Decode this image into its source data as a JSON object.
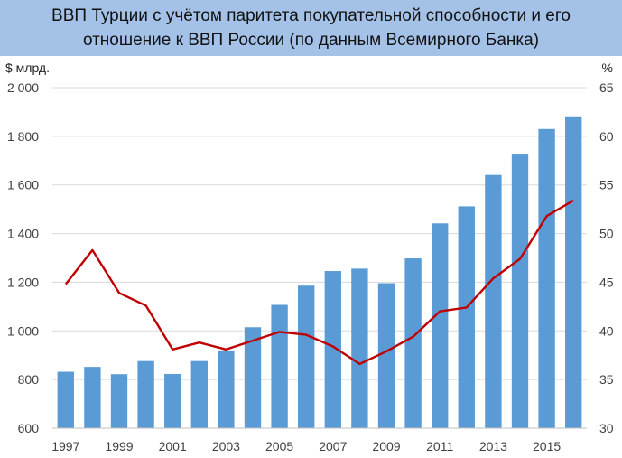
{
  "chart_data": {
    "type": "bar+line",
    "title_lines": [
      "ВВП Турции с учётом паритета покупательной способности и его",
      "отношение к ВВП России (по данным Всемирного Банка)"
    ],
    "y_left_unit": "$ млрд.",
    "y_right_unit": "%",
    "ylim_left": [
      600,
      2000
    ],
    "ylim_right": [
      30,
      65
    ],
    "y_left_ticks": [
      "600",
      "800",
      "1 000",
      "1 200",
      "1 400",
      "1 600",
      "1 800",
      "2 000"
    ],
    "y_right_ticks": [
      "30",
      "35",
      "40",
      "45",
      "50",
      "55",
      "60",
      "65"
    ],
    "x_tick_labels": [
      "1997",
      "1999",
      "2001",
      "2003",
      "2005",
      "2007",
      "2009",
      "2011",
      "2013",
      "2015"
    ],
    "categories": [
      "1997",
      "1998",
      "1999",
      "2000",
      "2001",
      "2002",
      "2003",
      "2004",
      "2005",
      "2006",
      "2007",
      "2008",
      "2009",
      "2010",
      "2011",
      "2012",
      "2013",
      "2014",
      "2015",
      "2016"
    ],
    "grid": true,
    "series": [
      {
        "kind": "bar",
        "axis": "left",
        "color": "#5b9bd5",
        "values": [
          832,
          852,
          822,
          876,
          823,
          876,
          920,
          1015,
          1107,
          1186,
          1246,
          1256,
          1196,
          1298,
          1442,
          1512,
          1641,
          1725,
          1830,
          1882
        ]
      },
      {
        "kind": "line",
        "axis": "right",
        "color": "#c00000",
        "values": [
          44.8,
          48.3,
          43.9,
          42.6,
          38.1,
          38.8,
          38.1,
          39.0,
          39.9,
          39.6,
          38.4,
          36.6,
          37.9,
          39.4,
          42.0,
          42.4,
          45.4,
          47.4,
          51.8,
          53.4
        ]
      }
    ]
  }
}
